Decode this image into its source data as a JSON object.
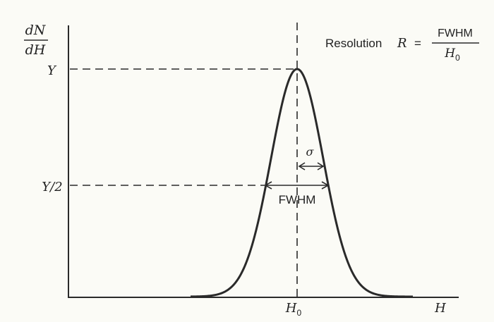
{
  "axes": {
    "y_numerator": "dN",
    "y_denominator": "dH",
    "x_label": "H"
  },
  "ticks": {
    "y_peak": "Y",
    "y_half": "Y/2",
    "x_center_main": "H",
    "x_center_sub": "0"
  },
  "annotations": {
    "sigma": "σ",
    "fwhm": "FWHM"
  },
  "formula": {
    "label": "Resolution",
    "symbol": "R",
    "equals": "=",
    "numerator": "FWHM",
    "denominator_main": "H",
    "denominator_sub": "0"
  },
  "chart_data": {
    "type": "line",
    "curve": "gaussian",
    "peak": "Y",
    "half_max": "Y/2",
    "center": "H0",
    "width_markers": [
      "σ",
      "FWHM"
    ]
  }
}
